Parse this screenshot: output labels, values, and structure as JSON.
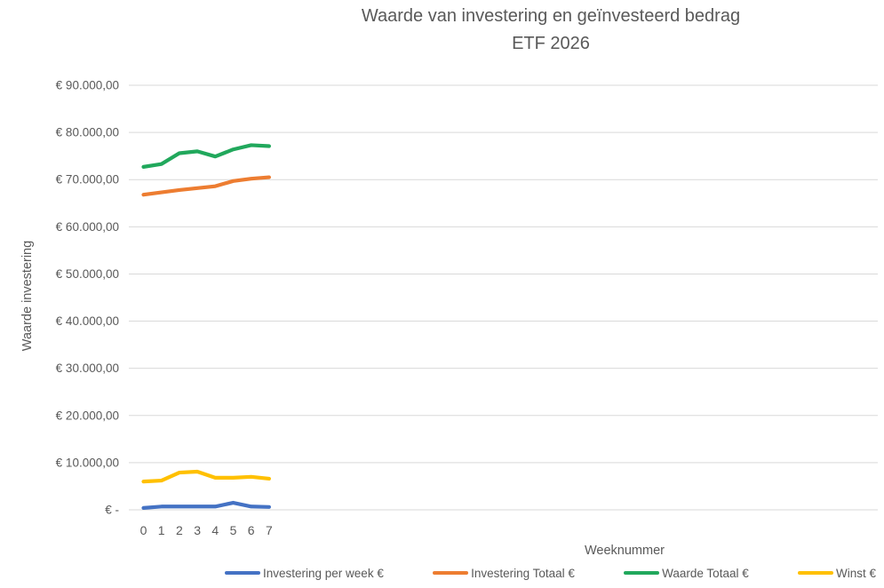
{
  "chart_data": {
    "type": "line",
    "title": "Waarde van investering en geïnvesteerd bedrag",
    "subtitle": "ETF 2026",
    "xlabel": "Weeknummer",
    "ylabel": "Waarde investering",
    "categories": [
      "0",
      "1",
      "2",
      "3",
      "4",
      "5",
      "6",
      "7"
    ],
    "series": [
      {
        "name": "Investering per week €",
        "color": "#4472C4",
        "values": [
          400,
          700,
          700,
          700,
          700,
          1500,
          700,
          600
        ]
      },
      {
        "name": "Investering Totaal €",
        "color": "#ED7D31",
        "values": [
          66800,
          67300,
          67800,
          68200,
          68600,
          69700,
          70200,
          70500
        ]
      },
      {
        "name": "Waarde Totaal €",
        "color": "#21A85C",
        "values": [
          72700,
          73300,
          75600,
          76000,
          74900,
          76400,
          77300,
          77100
        ]
      },
      {
        "name": "Winst €",
        "color": "#FFC000",
        "values": [
          6000,
          6200,
          7900,
          8100,
          6800,
          6800,
          7000,
          6600
        ]
      }
    ],
    "ylim": [
      0,
      90000
    ],
    "ytick_step": 10000,
    "ytick_labels": [
      "€ -",
      "€ 10.000,00",
      "€ 20.000,00",
      "€ 30.000,00",
      "€ 40.000,00",
      "€ 50.000,00",
      "€ 60.000,00",
      "€ 70.000,00",
      "€ 80.000,00",
      "€ 90.000,00"
    ],
    "grid": true,
    "legend_position": "bottom",
    "colors": {
      "gridline": "#D9D9D9",
      "axis_text": "#595959",
      "title_text": "#595959"
    }
  }
}
